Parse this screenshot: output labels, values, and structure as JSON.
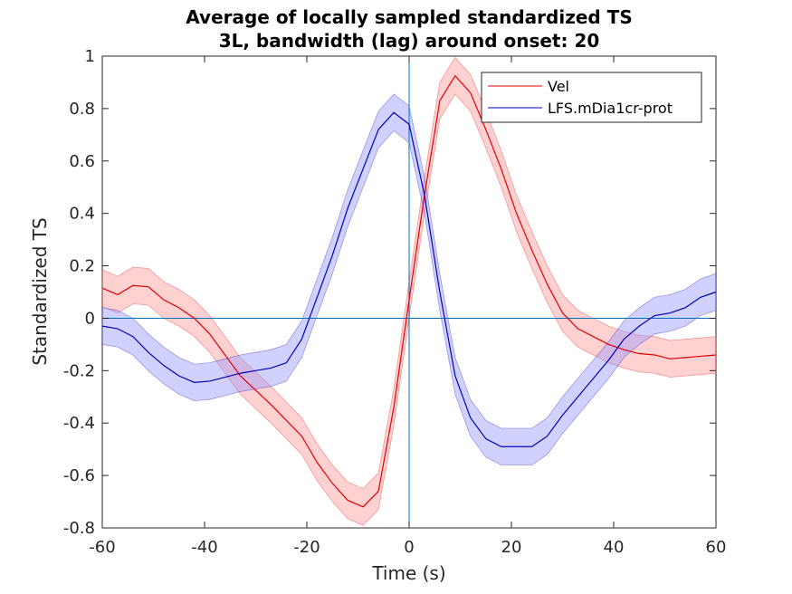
{
  "chart_data": {
    "type": "line",
    "title": [
      "Average of locally sampled standardized TS",
      "3L, bandwidth (lag) around onset: 20"
    ],
    "xlabel": "Time (s)",
    "ylabel": "Standardized TS",
    "xlim": [
      -60,
      60
    ],
    "ylim": [
      -0.8,
      1
    ],
    "xticks": [
      -60,
      -40,
      -20,
      0,
      20,
      40,
      60
    ],
    "yticks": [
      -0.8,
      -0.6,
      -0.4,
      -0.2,
      0,
      0.2,
      0.4,
      0.6,
      0.8,
      1
    ],
    "ytick_labels": [
      "-0.8",
      "-0.6",
      "-0.4",
      "-0.2",
      "0",
      "0.2",
      "0.4",
      "0.6",
      "0.8",
      "1"
    ],
    "xtick_labels": [
      "-60",
      "-40",
      "-20",
      "0",
      "20",
      "40",
      "60"
    ],
    "legend_position": "top-right",
    "grid": false,
    "reference_lines": {
      "x": 0,
      "y": 0,
      "color": "#0072bd"
    },
    "band_halfwidth": 0.07,
    "series": [
      {
        "name": "Vel",
        "color": "#e00000",
        "band_color": "#ff9a9a",
        "x": [
          -60,
          -57,
          -54,
          -51,
          -48,
          -45,
          -42,
          -39,
          -36,
          -33,
          -30,
          -27,
          -24,
          -21,
          -18,
          -15,
          -12,
          -9,
          -6,
          -3,
          0,
          3,
          6,
          9,
          12,
          15,
          18,
          21,
          24,
          27,
          30,
          33,
          36,
          39,
          42,
          45,
          48,
          51,
          54,
          57,
          60
        ],
        "y": [
          0.115,
          0.09,
          0.125,
          0.12,
          0.07,
          0.04,
          0.0,
          -0.06,
          -0.14,
          -0.22,
          -0.275,
          -0.33,
          -0.39,
          -0.45,
          -0.55,
          -0.63,
          -0.695,
          -0.72,
          -0.66,
          -0.34,
          0.07,
          0.47,
          0.83,
          0.925,
          0.86,
          0.72,
          0.57,
          0.4,
          0.26,
          0.13,
          0.02,
          -0.04,
          -0.07,
          -0.1,
          -0.12,
          -0.135,
          -0.14,
          -0.155,
          -0.15,
          -0.145,
          -0.14
        ]
      },
      {
        "name": "LFS.mDia1cr-prot",
        "color": "#0000b4",
        "band_color": "#9a9aff",
        "x": [
          -60,
          -57,
          -54,
          -51,
          -48,
          -45,
          -42,
          -39,
          -36,
          -33,
          -30,
          -27,
          -24,
          -21,
          -18,
          -15,
          -12,
          -9,
          -6,
          -3,
          0,
          3,
          6,
          9,
          12,
          15,
          18,
          21,
          24,
          27,
          30,
          33,
          36,
          39,
          42,
          45,
          48,
          51,
          54,
          57,
          60
        ],
        "y": [
          -0.03,
          -0.04,
          -0.07,
          -0.13,
          -0.18,
          -0.22,
          -0.245,
          -0.24,
          -0.225,
          -0.21,
          -0.2,
          -0.19,
          -0.17,
          -0.08,
          0.08,
          0.24,
          0.42,
          0.57,
          0.72,
          0.785,
          0.74,
          0.47,
          0.1,
          -0.22,
          -0.38,
          -0.46,
          -0.49,
          -0.49,
          -0.49,
          -0.45,
          -0.37,
          -0.3,
          -0.23,
          -0.16,
          -0.08,
          -0.03,
          0.01,
          0.02,
          0.04,
          0.08,
          0.1
        ]
      }
    ]
  }
}
